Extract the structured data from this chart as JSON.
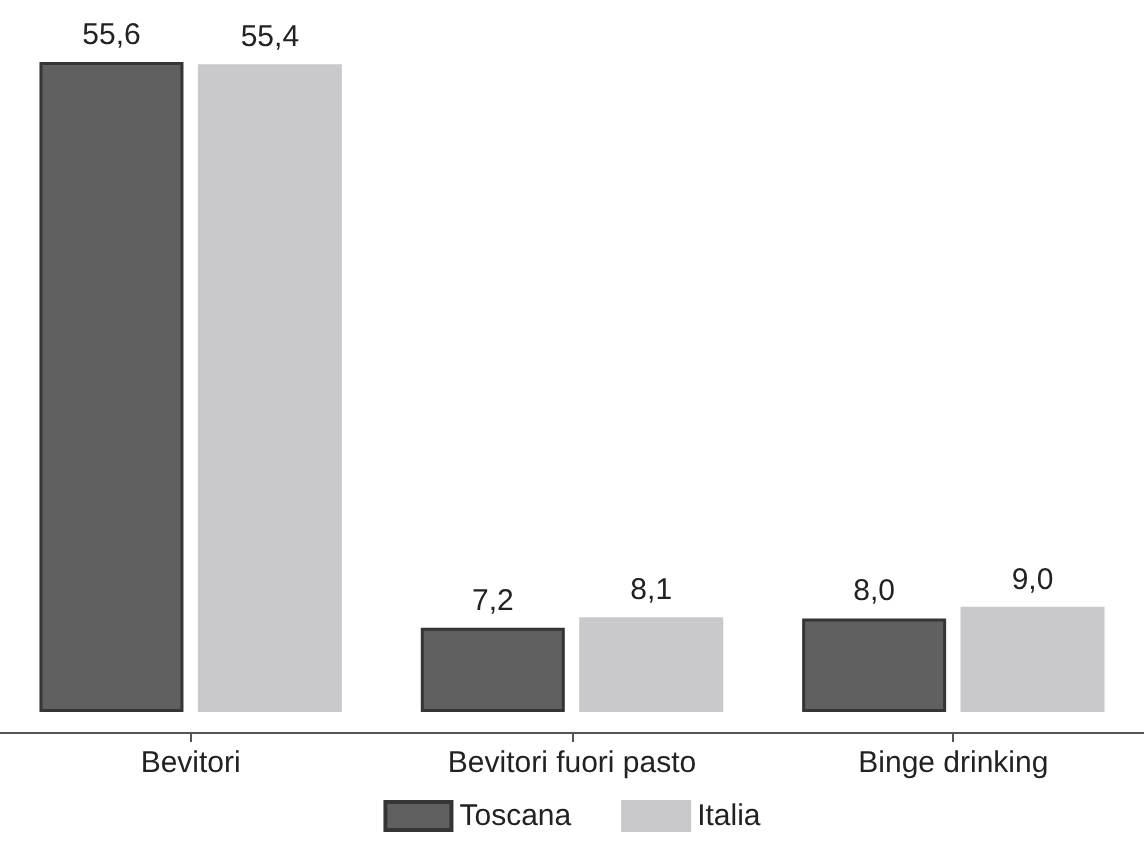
{
  "chart_data": {
    "type": "bar",
    "categories": [
      "Bevitori",
      "Bevitori fuori pasto",
      "Binge drinking"
    ],
    "series": [
      {
        "name": "Toscana",
        "color": "#606060",
        "values": [
          55.6,
          7.2,
          8.0
        ],
        "value_labels": [
          "55,6",
          "7,2",
          "8,0"
        ]
      },
      {
        "name": "Italia",
        "color": "#c9c9cb",
        "values": [
          55.4,
          8.1,
          9.0
        ],
        "value_labels": [
          "55,4",
          "8,1",
          "9,0"
        ]
      }
    ],
    "legend": "bottom"
  }
}
